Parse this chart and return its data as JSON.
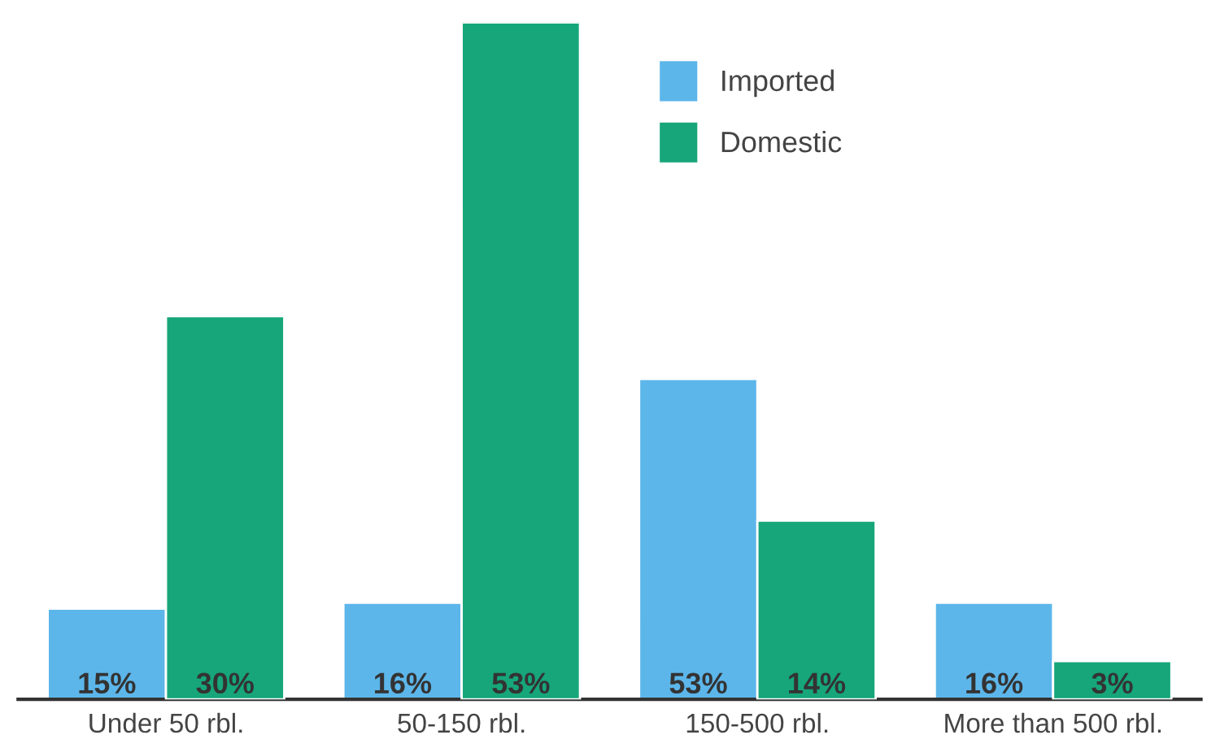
{
  "chart_data": {
    "type": "bar",
    "categories": [
      "Under 50 rbl.",
      "50-150 rbl.",
      "150-500 rbl.",
      "More than 500 rbl."
    ],
    "series": [
      {
        "name": "Imported",
        "color": "#5cb6ea",
        "values": [
          15,
          16,
          53,
          16
        ],
        "value_labels": [
          "15%",
          "16%",
          "53%",
          "16%"
        ]
      },
      {
        "name": "Domestic",
        "color": "#16a67a",
        "values": [
          30,
          53,
          14,
          3
        ],
        "value_labels": [
          "30%",
          "53%",
          "14%",
          "3%"
        ],
        "axis": "y2"
      }
    ],
    "ylim": [
      0,
      112
    ],
    "y2lim": [
      0,
      53
    ],
    "tick_labels": "x",
    "legend": "top",
    "grid": false
  }
}
